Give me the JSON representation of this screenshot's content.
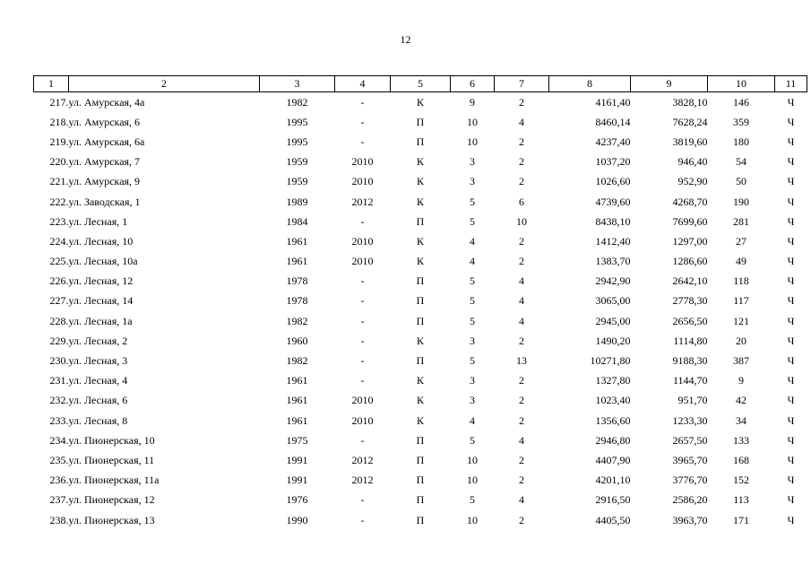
{
  "page": {
    "number": "12"
  },
  "columns": [
    "1",
    "2",
    "3",
    "4",
    "5",
    "6",
    "7",
    "8",
    "9",
    "10",
    "11"
  ],
  "rows": [
    [
      "217.",
      "ул. Амурская, 4а",
      "1982",
      "-",
      "К",
      "9",
      "2",
      "4161,40",
      "3828,10",
      "146",
      "Ч"
    ],
    [
      "218.",
      "ул. Амурская, 6",
      "1995",
      "-",
      "П",
      "10",
      "4",
      "8460,14",
      "7628,24",
      "359",
      "Ч"
    ],
    [
      "219.",
      "ул. Амурская, 6а",
      "1995",
      "-",
      "П",
      "10",
      "2",
      "4237,40",
      "3819,60",
      "180",
      "Ч"
    ],
    [
      "220.",
      "ул. Амурская, 7",
      "1959",
      "2010",
      "К",
      "3",
      "2",
      "1037,20",
      "946,40",
      "54",
      "Ч"
    ],
    [
      "221.",
      "ул. Амурская, 9",
      "1959",
      "2010",
      "К",
      "3",
      "2",
      "1026,60",
      "952,90",
      "50",
      "Ч"
    ],
    [
      "222.",
      "ул. Заводская, 1",
      "1989",
      "2012",
      "К",
      "5",
      "6",
      "4739,60",
      "4268,70",
      "190",
      "Ч"
    ],
    [
      "223.",
      "ул. Лесная, 1",
      "1984",
      "-",
      "П",
      "5",
      "10",
      "8438,10",
      "7699,60",
      "281",
      "Ч"
    ],
    [
      "224.",
      "ул. Лесная, 10",
      "1961",
      "2010",
      "К",
      "4",
      "2",
      "1412,40",
      "1297,00",
      "27",
      "Ч"
    ],
    [
      "225.",
      "ул. Лесная, 10а",
      "1961",
      "2010",
      "К",
      "4",
      "2",
      "1383,70",
      "1286,60",
      "49",
      "Ч"
    ],
    [
      "226.",
      "ул. Лесная, 12",
      "1978",
      "-",
      "П",
      "5",
      "4",
      "2942,90",
      "2642,10",
      "118",
      "Ч"
    ],
    [
      "227.",
      "ул. Лесная, 14",
      "1978",
      "-",
      "П",
      "5",
      "4",
      "3065,00",
      "2778,30",
      "117",
      "Ч"
    ],
    [
      "228.",
      "ул. Лесная, 1а",
      "1982",
      "-",
      "П",
      "5",
      "4",
      "2945,00",
      "2656,50",
      "121",
      "Ч"
    ],
    [
      "229.",
      "ул. Лесная, 2",
      "1960",
      "-",
      "К",
      "3",
      "2",
      "1490,20",
      "1114,80",
      "20",
      "Ч"
    ],
    [
      "230.",
      "ул. Лесная, 3",
      "1982",
      "-",
      "П",
      "5",
      "13",
      "10271,80",
      "9188,30",
      "387",
      "Ч"
    ],
    [
      "231.",
      "ул. Лесная, 4",
      "1961",
      "-",
      "К",
      "3",
      "2",
      "1327,80",
      "1144,70",
      "9",
      "Ч"
    ],
    [
      "232.",
      "ул. Лесная, 6",
      "1961",
      "2010",
      "К",
      "3",
      "2",
      "1023,40",
      "951,70",
      "42",
      "Ч"
    ],
    [
      "233.",
      "ул. Лесная, 8",
      "1961",
      "2010",
      "К",
      "4",
      "2",
      "1356,60",
      "1233,30",
      "34",
      "Ч"
    ],
    [
      "234.",
      "ул. Пионерская, 10",
      "1975",
      "-",
      "П",
      "5",
      "4",
      "2946,80",
      "2657,50",
      "133",
      "Ч"
    ],
    [
      "235.",
      "ул. Пионерская, 11",
      "1991",
      "2012",
      "П",
      "10",
      "2",
      "4407,90",
      "3965,70",
      "168",
      "Ч"
    ],
    [
      "236.",
      "ул. Пионерская, 11а",
      "1991",
      "2012",
      "П",
      "10",
      "2",
      "4201,10",
      "3776,70",
      "152",
      "Ч"
    ],
    [
      "237.",
      "ул. Пионерская, 12",
      "1976",
      "-",
      "П",
      "5",
      "4",
      "2916,50",
      "2586,20",
      "113",
      "Ч"
    ],
    [
      "238.",
      "ул. Пионерская, 13",
      "1990",
      "-",
      "П",
      "10",
      "2",
      "4405,50",
      "3963,70",
      "171",
      "Ч"
    ]
  ]
}
